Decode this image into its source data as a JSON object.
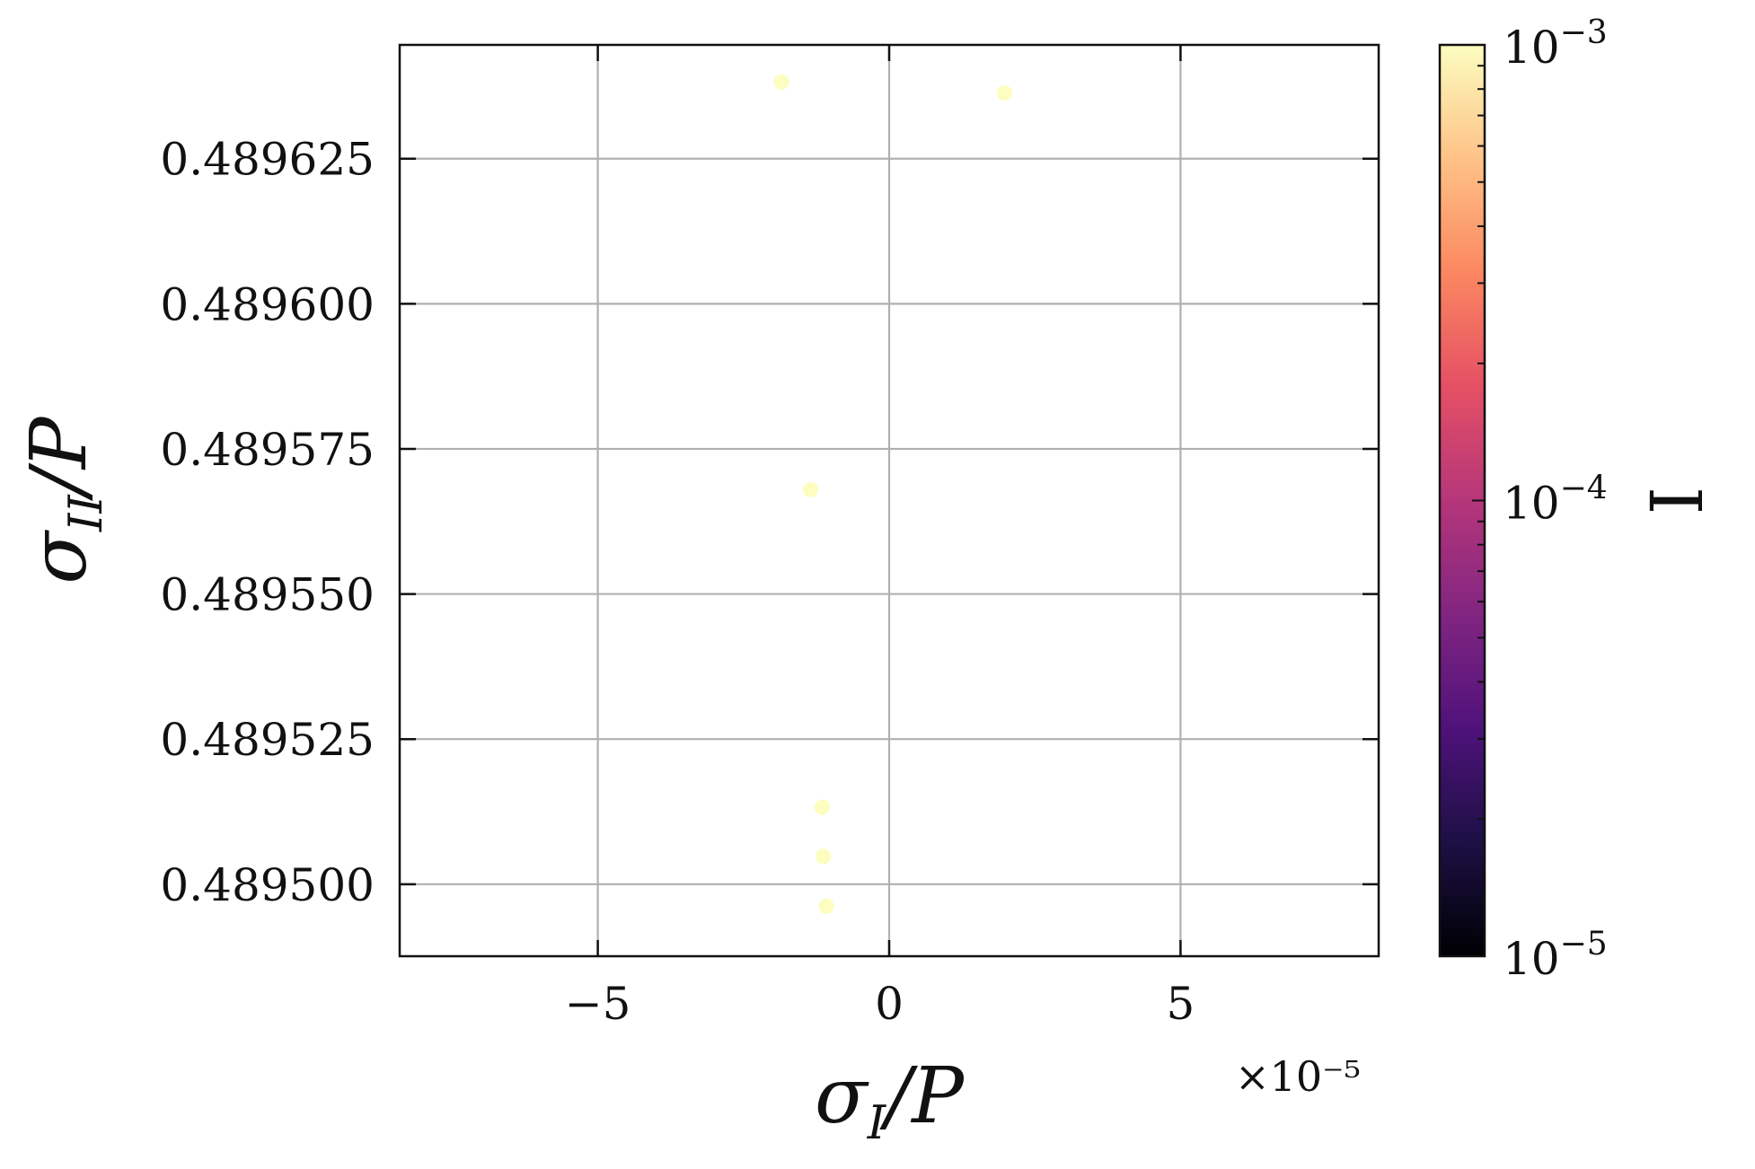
{
  "chart_data": {
    "type": "scatter",
    "title": "",
    "xlabel": {
      "main": "σ",
      "sub": "I",
      "rest": "/P"
    },
    "ylabel": {
      "main": "σ",
      "sub": "II",
      "rest": "/P"
    },
    "x_offset_label": "×10⁻⁵",
    "x_scale": 1e-05,
    "xlim": [
      -8.4,
      8.4
    ],
    "ylim": [
      0.4894876,
      0.4896446
    ],
    "xticks": [
      -5,
      0,
      5
    ],
    "xtick_labels": [
      "−5",
      "0",
      "5"
    ],
    "yticks": [
      0.4895,
      0.489525,
      0.48955,
      0.489575,
      0.4896,
      0.489625
    ],
    "ytick_labels": [
      "0.489500",
      "0.489525",
      "0.489550",
      "0.489575",
      "0.489600",
      "0.489625"
    ],
    "grid": true,
    "point_color": "#fcfdbf",
    "points": [
      {
        "x": -1.85,
        "y": 0.4896382,
        "c": 0.001
      },
      {
        "x": 1.98,
        "y": 0.4896363,
        "c": 0.001
      },
      {
        "x": -1.35,
        "y": 0.489568,
        "c": 0.001
      },
      {
        "x": -1.15,
        "y": 0.4895133,
        "c": 0.001
      },
      {
        "x": -1.13,
        "y": 0.4895048,
        "c": 0.001
      },
      {
        "x": -1.08,
        "y": 0.4894962,
        "c": 0.001
      }
    ],
    "colorbar": {
      "label": "I",
      "scale": "log",
      "range": [
        1e-05,
        0.001
      ],
      "tick_labels": [
        {
          "base": "10",
          "exp": "−3"
        },
        {
          "base": "10",
          "exp": "−4"
        },
        {
          "base": "10",
          "exp": "−5"
        }
      ],
      "colormap": [
        "#000004",
        "#1c1044",
        "#4f127b",
        "#812581",
        "#b5367a",
        "#e55064",
        "#fb8761",
        "#fec287",
        "#fcfdbf"
      ]
    }
  }
}
